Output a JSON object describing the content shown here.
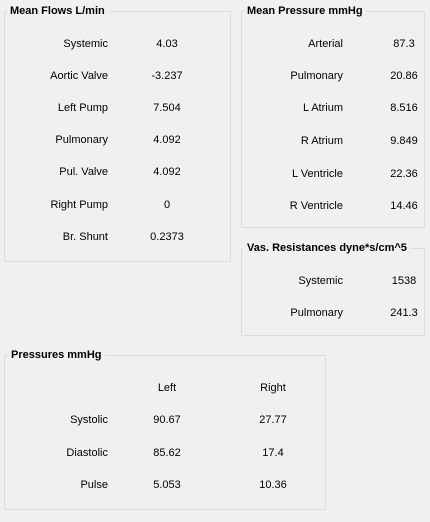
{
  "mean_flows": {
    "title": "Mean Flows   L/min",
    "rows": [
      {
        "label": "Systemic",
        "value": "4.03"
      },
      {
        "label": "Aortic Valve",
        "value": "-3.237"
      },
      {
        "label": "Left Pump",
        "value": "7.504"
      },
      {
        "label": "Pulmonary",
        "value": "4.092"
      },
      {
        "label": "Pul. Valve",
        "value": "4.092"
      },
      {
        "label": "Right Pump",
        "value": "0"
      },
      {
        "label": "Br. Shunt",
        "value": "0.2373"
      }
    ]
  },
  "mean_pressure": {
    "title": "Mean Pressure   mmHg",
    "rows": [
      {
        "label": "Arterial",
        "value": "87.3"
      },
      {
        "label": "Pulmonary",
        "value": "20.86"
      },
      {
        "label": "L Atrium",
        "value": "8.516"
      },
      {
        "label": "R Atrium",
        "value": "9.849"
      },
      {
        "label": "L Ventricle",
        "value": "22.36"
      },
      {
        "label": "R Ventricle",
        "value": "14.46"
      }
    ]
  },
  "vas_resistances": {
    "title": "Vas. Resistances  dyne*s/cm^5",
    "rows": [
      {
        "label": "Systemic",
        "value": "1538"
      },
      {
        "label": "Pulmonary",
        "value": "241.3"
      }
    ]
  },
  "pressures": {
    "title": "Pressures  mmHg",
    "col_left": "Left",
    "col_right": "Right",
    "rows": [
      {
        "label": "Systolic",
        "left": "90.67",
        "right": "27.77"
      },
      {
        "label": "Diastolic",
        "left": "85.62",
        "right": "17.4"
      },
      {
        "label": "Pulse",
        "left": "5.053",
        "right": "10.36"
      }
    ]
  }
}
